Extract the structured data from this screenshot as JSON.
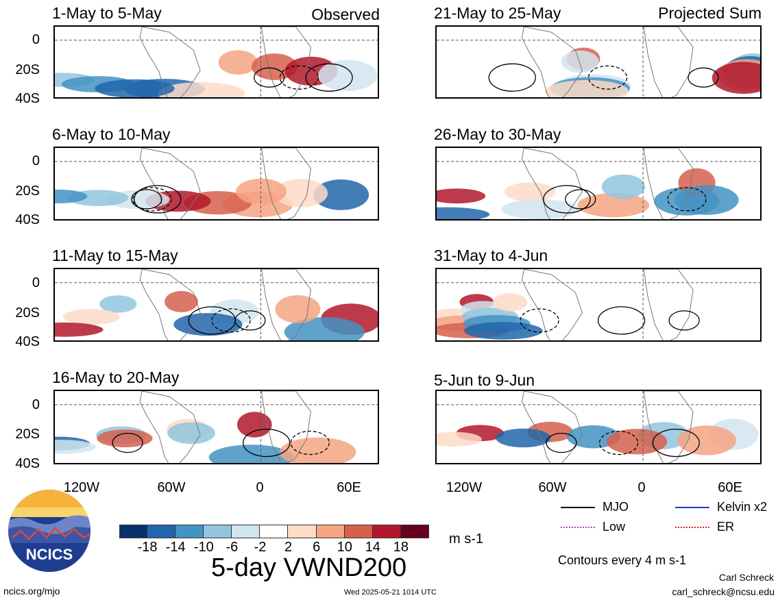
{
  "panels": [
    {
      "title": "1-May to 5-May",
      "label": "Observed"
    },
    {
      "title": "21-May to 25-May",
      "label": "Projected Sum"
    },
    {
      "title": "6-May to 10-May",
      "label": ""
    },
    {
      "title": "26-May to 30-May",
      "label": ""
    },
    {
      "title": "11-May to 15-May",
      "label": ""
    },
    {
      "title": "31-May to 4-Jun",
      "label": ""
    },
    {
      "title": "16-May to 20-May",
      "label": ""
    },
    {
      "title": "5-Jun to 9-Jun",
      "label": ""
    }
  ],
  "y_ticks": [
    "0",
    "20S",
    "40S"
  ],
  "x_ticks": [
    "120W",
    "60W",
    "0",
    "60E"
  ],
  "colorbar": {
    "colors": [
      "#08306b",
      "#2166ac",
      "#4393c3",
      "#92c5de",
      "#d1e5f0",
      "#ffffff",
      "#fddbc7",
      "#f4a582",
      "#d6604d",
      "#b2182b",
      "#67001f"
    ],
    "ticks": [
      "-18",
      "-14",
      "-10",
      "-6",
      "-2",
      "2",
      "6",
      "10",
      "14",
      "18"
    ],
    "units": "m s-1"
  },
  "legend": [
    {
      "label": "MJO",
      "color": "#000000"
    },
    {
      "label": "Kelvin x2",
      "color": "#1f35d6"
    },
    {
      "label": "Low",
      "color": "#a43fd6"
    },
    {
      "label": "ER",
      "color": "#d62020"
    }
  ],
  "contour_note": "Contours every 4 m s-1",
  "main_title": "5-day VWND200",
  "logo_text": "NCICS",
  "footer": {
    "url": "ncics.org/mjo",
    "timestamp": "Wed 2025-05-21 1014 UTC",
    "author": "Carl Schreck",
    "email": "carl_schreck@ncsu.edu"
  }
}
